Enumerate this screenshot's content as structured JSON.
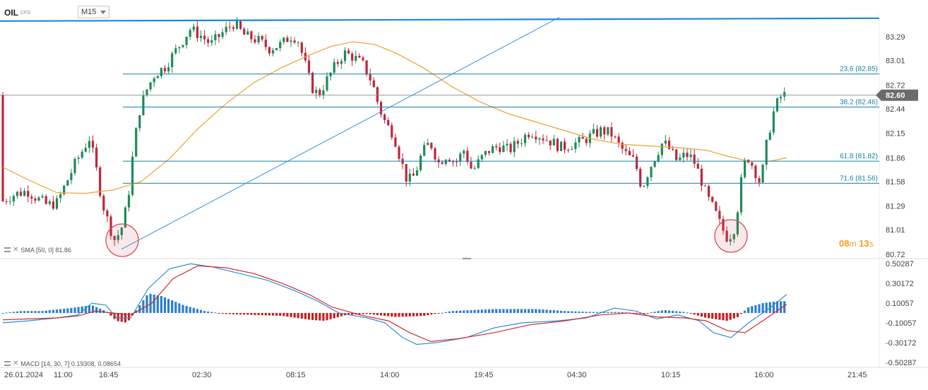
{
  "header": {
    "symbol": "OIL",
    "symbol_type": "CFD",
    "timeframe": "M15"
  },
  "colors": {
    "bull": "#1e8a5a",
    "bear": "#c0253a",
    "sma": "#f0a030",
    "fib": "#1a7fa0",
    "resistance": "#1f88d8",
    "trendline": "#3090e0",
    "macd_line": "#2b8fd6",
    "signal_line": "#d42a2a",
    "hist_pos": "#2b7fd0",
    "hist_neg": "#c81e1e",
    "circle": "#d24050"
  },
  "chart_data": [
    {
      "type": "candlestick",
      "series_name": "OIL",
      "yticks": [
        "83.29",
        "83.01",
        "82.72",
        "82.44",
        "82.15",
        "81.86",
        "81.58",
        "81.29",
        "81.01",
        "80.72"
      ],
      "ylim": [
        80.72,
        83.55
      ],
      "xticks": [
        "26.01.2024",
        "11:00",
        "16:45",
        "02:30",
        "08:15",
        "14:00",
        "19:45",
        "04:30",
        "10:15",
        "16:00",
        "21:45"
      ],
      "last_price": "82.60",
      "last_price_value": 82.6,
      "resistance_level": 83.5,
      "fib_levels": [
        {
          "label": "23.6 (82.85)",
          "value": 82.85
        },
        {
          "label": "38.2 (82.46)",
          "value": 82.46
        },
        {
          "label": "61.8 (81.82)",
          "value": 81.82
        },
        {
          "label": "71.6 (81.56)",
          "value": 81.56
        }
      ],
      "sma_label": "SMA [50, 0] 81.86",
      "sma_value": 81.86,
      "timer": {
        "minutes": "08",
        "m": "m",
        "seconds": "13",
        "s": "s"
      }
    },
    {
      "type": "macd",
      "label": "MACD [14, 30, 7] 0.19308, 0.08654",
      "yticks": [
        "0.50287",
        "0.30172",
        "0.10057",
        "-0.10057",
        "-0.30172",
        "-0.50287"
      ],
      "ylim": [
        -0.50287,
        0.50287
      ]
    }
  ]
}
